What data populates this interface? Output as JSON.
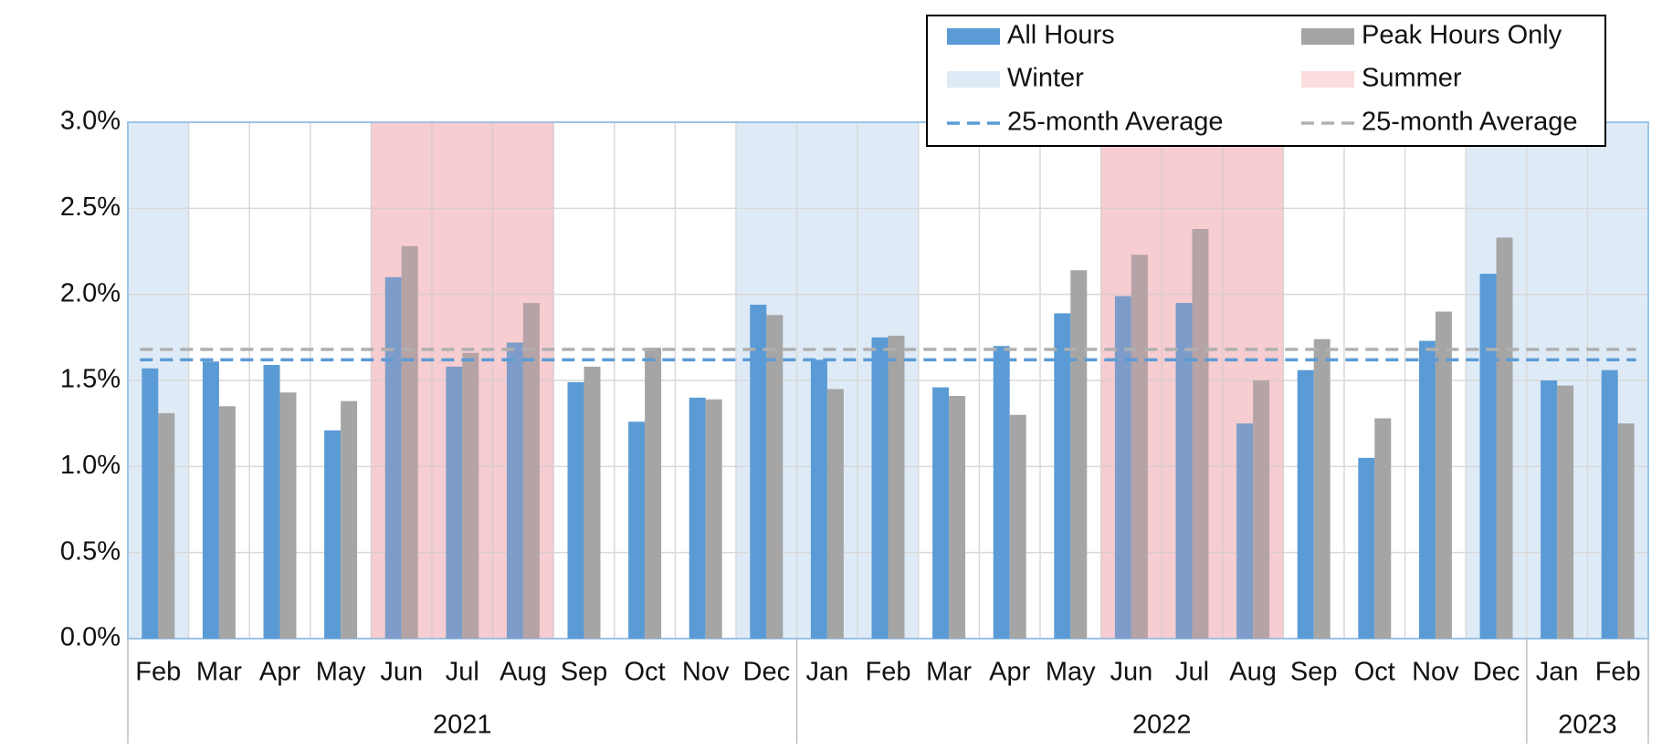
{
  "chart_data": {
    "type": "bar",
    "categories": [
      "Feb",
      "Mar",
      "Apr",
      "May",
      "Jun",
      "Jul",
      "Aug",
      "Sep",
      "Oct",
      "Nov",
      "Dec",
      "Jan",
      "Feb",
      "Mar",
      "Apr",
      "May",
      "Jun",
      "Jul",
      "Aug",
      "Sep",
      "Oct",
      "Nov",
      "Dec",
      "Jan",
      "Feb"
    ],
    "years": [
      {
        "label": "2021",
        "span": 11
      },
      {
        "label": "2022",
        "span": 12
      },
      {
        "label": "2023",
        "span": 2
      }
    ],
    "seasons": [
      "Winter",
      null,
      null,
      null,
      "Summer",
      "Summer",
      "Summer",
      null,
      null,
      null,
      "Winter",
      "Winter",
      "Winter",
      null,
      null,
      null,
      "Summer",
      "Summer",
      "Summer",
      null,
      null,
      null,
      "Winter",
      "Winter",
      "Winter"
    ],
    "season_legend": [
      {
        "name": "Winter",
        "color": "#deebf7"
      },
      {
        "name": "Summer",
        "color": "#fbdcdf"
      }
    ],
    "series": [
      {
        "name": "All Hours",
        "color": "#5b9bd5",
        "values": [
          1.57,
          1.61,
          1.59,
          1.21,
          2.1,
          1.58,
          1.72,
          1.49,
          1.26,
          1.4,
          1.94,
          1.62,
          1.75,
          1.46,
          1.7,
          1.89,
          1.99,
          1.95,
          1.25,
          1.56,
          1.05,
          1.73,
          2.12,
          1.5,
          1.56
        ]
      },
      {
        "name": "Peak Hours Only",
        "color": "#a5a5a5",
        "values": [
          1.31,
          1.35,
          1.43,
          1.38,
          2.28,
          1.66,
          1.95,
          1.58,
          1.69,
          1.39,
          1.88,
          1.45,
          1.76,
          1.41,
          1.3,
          2.14,
          2.23,
          2.38,
          1.5,
          1.74,
          1.28,
          1.9,
          2.33,
          1.47,
          1.25
        ]
      }
    ],
    "reference_lines": [
      {
        "name": "25-month Average",
        "color": "#5b9bd5",
        "value": 1.62
      },
      {
        "name": "25-month Average",
        "color": "#b0b0b0",
        "value": 1.68
      }
    ],
    "ylim": [
      0,
      3
    ],
    "yticks": [
      {
        "value": 0,
        "label": "0.0%"
      },
      {
        "value": 0.5,
        "label": "0.5%"
      },
      {
        "value": 1,
        "label": "1.0%"
      },
      {
        "value": 1.5,
        "label": "1.5%"
      },
      {
        "value": 2,
        "label": "2.0%"
      },
      {
        "value": 2.5,
        "label": "2.5%"
      },
      {
        "value": 3,
        "label": "3.0%"
      }
    ],
    "grid": true
  }
}
